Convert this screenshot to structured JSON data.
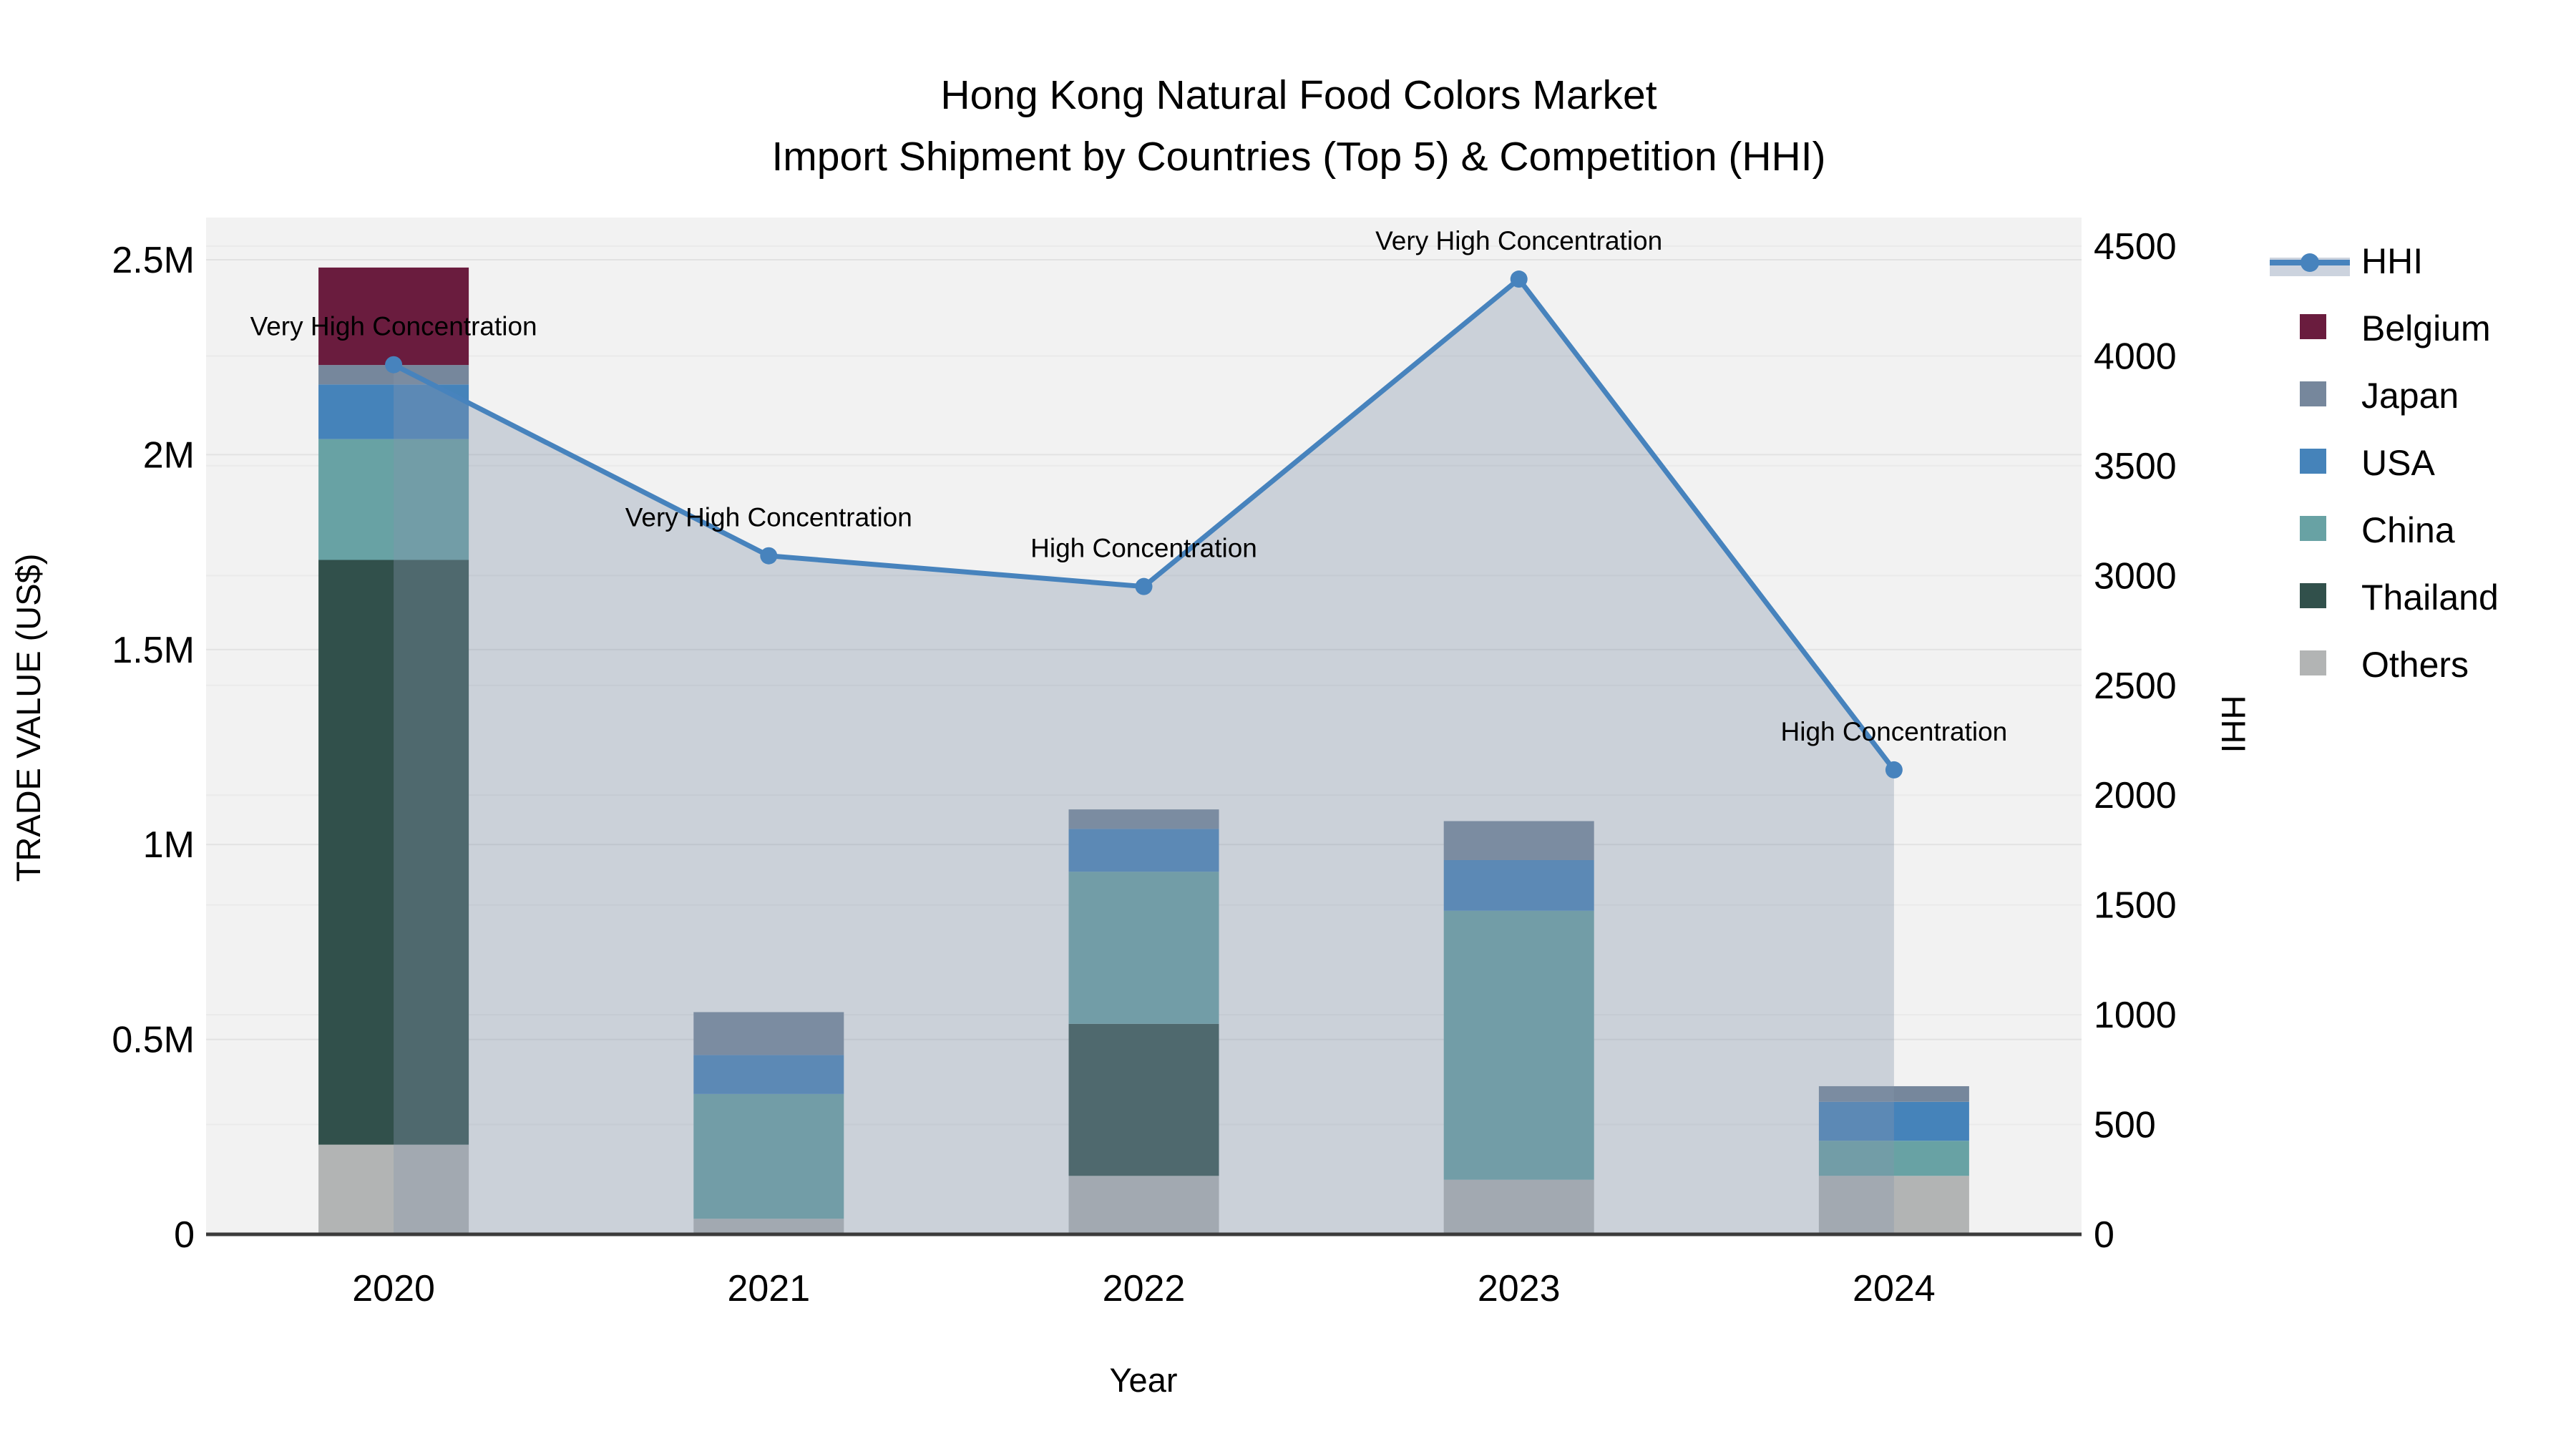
{
  "title": {
    "line1": "Hong Kong Natural Food Colors Market",
    "line2": "Import Shipment by Countries (Top 5) & Competition (HHI)"
  },
  "axes": {
    "x": {
      "title": "Year",
      "categories": [
        "2020",
        "2021",
        "2022",
        "2023",
        "2024"
      ]
    },
    "y_left": {
      "title": "TRADE VALUE (US$)",
      "tick_labels": [
        "0",
        "0.5M",
        "1M",
        "1.5M",
        "2M",
        "2.5M"
      ],
      "tick_values_musd": [
        0,
        0.5,
        1,
        1.5,
        2,
        2.5
      ],
      "range_musd": [
        0,
        2.5
      ]
    },
    "y_right": {
      "title": "HHI",
      "tick_labels": [
        "0",
        "500",
        "1000",
        "1500",
        "2000",
        "2500",
        "3000",
        "3500",
        "4000",
        "4500"
      ],
      "tick_values": [
        0,
        500,
        1000,
        1500,
        2000,
        2500,
        3000,
        3500,
        4000,
        4500
      ],
      "range": [
        0,
        4500
      ]
    }
  },
  "legend": {
    "items": [
      {
        "label": "HHI",
        "type": "line",
        "color": "#4783bd",
        "band_color": "#ccd3de"
      },
      {
        "label": "Belgium",
        "type": "swatch",
        "color": "#6a1c3e"
      },
      {
        "label": "Japan",
        "type": "swatch",
        "color": "#76879c"
      },
      {
        "label": "USA",
        "type": "swatch",
        "color": "#4583ba"
      },
      {
        "label": "China",
        "type": "swatch",
        "color": "#68a2a4"
      },
      {
        "label": "Thailand",
        "type": "swatch",
        "color": "#31504b"
      },
      {
        "label": "Others",
        "type": "swatch",
        "color": "#b2b4b4"
      }
    ]
  },
  "chart_data": {
    "type": "combo",
    "subtype": "stacked-bar + line-area (secondary axis)",
    "categories": [
      "2020",
      "2021",
      "2022",
      "2023",
      "2024"
    ],
    "bar_unit": "M US$",
    "bar_stack_order": "bottom to top",
    "bar_series": [
      {
        "name": "Others",
        "color": "#b2b4b4",
        "values_musd": [
          0.23,
          0.04,
          0.15,
          0.14,
          0.15
        ]
      },
      {
        "name": "Thailand",
        "color": "#31504b",
        "values_musd": [
          1.5,
          0.0,
          0.39,
          0.0,
          0.0
        ]
      },
      {
        "name": "China",
        "color": "#68a2a4",
        "values_musd": [
          0.31,
          0.32,
          0.39,
          0.69,
          0.09
        ]
      },
      {
        "name": "USA",
        "color": "#4583ba",
        "values_musd": [
          0.14,
          0.1,
          0.11,
          0.13,
          0.1
        ]
      },
      {
        "name": "Japan",
        "color": "#76879c",
        "values_musd": [
          0.05,
          0.11,
          0.05,
          0.1,
          0.04
        ]
      },
      {
        "name": "Belgium",
        "color": "#6a1c3e",
        "values_musd": [
          0.25,
          0.0,
          0.0,
          0.0,
          0.0
        ]
      }
    ],
    "bar_totals_musd": [
      2.48,
      0.57,
      1.09,
      1.06,
      0.38
    ],
    "line_series": {
      "name": "HHI",
      "color": "#4783bd",
      "marker": "circle",
      "area_fill": "rgba(133,149,171,0.36)",
      "values": [
        3960,
        3090,
        2950,
        4350,
        2115
      ]
    },
    "point_annotations": [
      "Very High Concentration",
      "Very High Concentration",
      "High Concentration",
      "Very High Concentration",
      "High Concentration"
    ],
    "layout_hints": {
      "plot_background": "#f2f2f2",
      "gridlines": "horizontal, both axes tick sets",
      "legend_position": "right, outside plot",
      "ylim_left_musd": [
        0,
        2.5
      ],
      "ylim_right": [
        0,
        4500
      ]
    }
  }
}
